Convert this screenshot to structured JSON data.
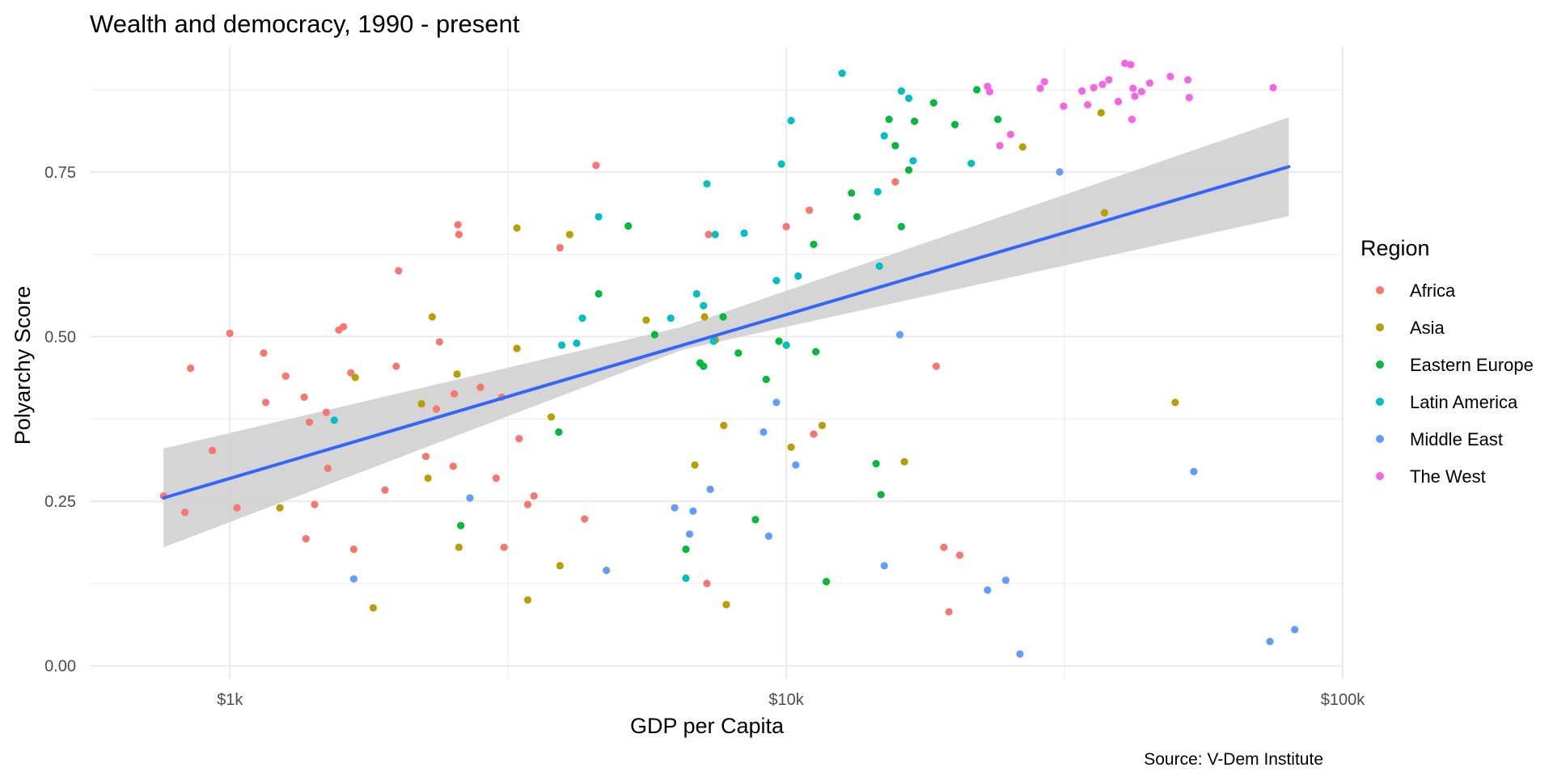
{
  "chart_data": {
    "type": "scatter",
    "title": "Wealth and democracy, 1990 - present",
    "xlabel": "GDP per Capita",
    "ylabel": "Polyarchy Score",
    "caption": "Source: V-Dem Institute",
    "x_scale": "log10",
    "xlim": [
      560,
      100000
    ],
    "ylim": [
      -0.02,
      0.94
    ],
    "x_ticks": [
      {
        "value": 1000,
        "label": "$1k"
      },
      {
        "value": 10000,
        "label": "$10k"
      },
      {
        "value": 100000,
        "label": "$100k"
      }
    ],
    "y_ticks": [
      {
        "value": 0,
        "label": "0.00"
      },
      {
        "value": 0.25,
        "label": "0.25"
      },
      {
        "value": 0.5,
        "label": "0.50"
      },
      {
        "value": 0.75,
        "label": "0.75"
      }
    ],
    "grid": true,
    "legend": {
      "title": "Region",
      "position": "right"
    },
    "trend": {
      "type": "linear fit on log10(x)",
      "line": [
        [
          760,
          0.255
        ],
        [
          80000,
          0.758
        ]
      ],
      "band_lower": [
        [
          760,
          0.18
        ],
        [
          6500,
          0.48
        ],
        [
          80000,
          0.683
        ]
      ],
      "band_upper": [
        [
          760,
          0.33
        ],
        [
          6500,
          0.515
        ],
        [
          80000,
          0.833
        ]
      ],
      "line_color": "#3366FF",
      "band_color": "#d3d3d3"
    },
    "series": [
      {
        "name": "Africa",
        "color": "#F8766D",
        "points": [
          [
            760,
            0.258
          ],
          [
            830,
            0.233
          ],
          [
            850,
            0.452
          ],
          [
            930,
            0.327
          ],
          [
            1000,
            0.505
          ],
          [
            1030,
            0.24
          ],
          [
            1150,
            0.475
          ],
          [
            1160,
            0.4
          ],
          [
            1260,
            0.44
          ],
          [
            1360,
            0.408
          ],
          [
            1370,
            0.193
          ],
          [
            1390,
            0.37
          ],
          [
            1420,
            0.245
          ],
          [
            1490,
            0.385
          ],
          [
            1500,
            0.3
          ],
          [
            1570,
            0.51
          ],
          [
            1600,
            0.515
          ],
          [
            1650,
            0.445
          ],
          [
            1670,
            0.177
          ],
          [
            1900,
            0.267
          ],
          [
            1990,
            0.455
          ],
          [
            2010,
            0.6
          ],
          [
            2250,
            0.318
          ],
          [
            2350,
            0.39
          ],
          [
            2380,
            0.492
          ],
          [
            2520,
            0.303
          ],
          [
            2530,
            0.413
          ],
          [
            2570,
            0.67
          ],
          [
            2580,
            0.655
          ],
          [
            2820,
            0.423
          ],
          [
            3010,
            0.285
          ],
          [
            3080,
            0.408
          ],
          [
            3110,
            0.18
          ],
          [
            3310,
            0.345
          ],
          [
            3430,
            0.245
          ],
          [
            3520,
            0.258
          ],
          [
            3920,
            0.635
          ],
          [
            4340,
            0.223
          ],
          [
            4550,
            0.76
          ],
          [
            7200,
            0.125
          ],
          [
            7250,
            0.655
          ],
          [
            10000,
            0.667
          ],
          [
            11000,
            0.692
          ],
          [
            11200,
            0.352
          ],
          [
            15700,
            0.735
          ],
          [
            18600,
            0.455
          ],
          [
            19200,
            0.18
          ],
          [
            19600,
            0.082
          ],
          [
            20500,
            0.168
          ]
        ]
      },
      {
        "name": "Asia",
        "color": "#B79F00",
        "points": [
          [
            1230,
            0.24
          ],
          [
            1680,
            0.438
          ],
          [
            1810,
            0.088
          ],
          [
            2210,
            0.398
          ],
          [
            2270,
            0.285
          ],
          [
            2310,
            0.53
          ],
          [
            2560,
            0.443
          ],
          [
            2580,
            0.18
          ],
          [
            3280,
            0.482
          ],
          [
            3280,
            0.665
          ],
          [
            3430,
            0.1
          ],
          [
            3780,
            0.378
          ],
          [
            3920,
            0.152
          ],
          [
            4080,
            0.655
          ],
          [
            5600,
            0.525
          ],
          [
            6850,
            0.305
          ],
          [
            7130,
            0.53
          ],
          [
            7460,
            0.495
          ],
          [
            7720,
            0.365
          ],
          [
            7800,
            0.093
          ],
          [
            10200,
            0.332
          ],
          [
            11600,
            0.365
          ],
          [
            16300,
            0.31
          ],
          [
            26600,
            0.788
          ],
          [
            36800,
            0.84
          ],
          [
            37300,
            0.688
          ],
          [
            50000,
            0.4
          ]
        ]
      },
      {
        "name": "Eastern Europe",
        "color": "#00BA38",
        "points": [
          [
            2600,
            0.213
          ],
          [
            3900,
            0.355
          ],
          [
            4600,
            0.565
          ],
          [
            5200,
            0.668
          ],
          [
            5800,
            0.503
          ],
          [
            6600,
            0.177
          ],
          [
            7000,
            0.46
          ],
          [
            7100,
            0.455
          ],
          [
            7700,
            0.53
          ],
          [
            8200,
            0.475
          ],
          [
            8800,
            0.222
          ],
          [
            9200,
            0.435
          ],
          [
            9700,
            0.493
          ],
          [
            11200,
            0.64
          ],
          [
            11300,
            0.477
          ],
          [
            11800,
            0.128
          ],
          [
            13100,
            0.718
          ],
          [
            13400,
            0.682
          ],
          [
            14500,
            0.307
          ],
          [
            14800,
            0.26
          ],
          [
            15300,
            0.83
          ],
          [
            15700,
            0.79
          ],
          [
            16100,
            0.667
          ],
          [
            16600,
            0.753
          ],
          [
            17000,
            0.827
          ],
          [
            18400,
            0.855
          ],
          [
            20100,
            0.822
          ],
          [
            22000,
            0.875
          ],
          [
            24000,
            0.83
          ]
        ]
      },
      {
        "name": "Latin America",
        "color": "#00BFC4",
        "points": [
          [
            1540,
            0.373
          ],
          [
            3950,
            0.487
          ],
          [
            4200,
            0.49
          ],
          [
            4300,
            0.528
          ],
          [
            4600,
            0.682
          ],
          [
            6200,
            0.528
          ],
          [
            6600,
            0.133
          ],
          [
            6900,
            0.565
          ],
          [
            7100,
            0.547
          ],
          [
            7200,
            0.732
          ],
          [
            7400,
            0.493
          ],
          [
            7450,
            0.655
          ],
          [
            8400,
            0.657
          ],
          [
            9600,
            0.585
          ],
          [
            9800,
            0.762
          ],
          [
            10000,
            0.487
          ],
          [
            10200,
            0.828
          ],
          [
            10500,
            0.592
          ],
          [
            12600,
            0.9
          ],
          [
            14600,
            0.72
          ],
          [
            14700,
            0.607
          ],
          [
            15000,
            0.805
          ],
          [
            16100,
            0.873
          ],
          [
            16600,
            0.862
          ],
          [
            16900,
            0.767
          ],
          [
            21500,
            0.763
          ]
        ]
      },
      {
        "name": "Middle East",
        "color": "#619CFF",
        "points": [
          [
            1670,
            0.132
          ],
          [
            2700,
            0.255
          ],
          [
            4750,
            0.145
          ],
          [
            6300,
            0.24
          ],
          [
            6700,
            0.2
          ],
          [
            6800,
            0.235
          ],
          [
            7300,
            0.268
          ],
          [
            9100,
            0.355
          ],
          [
            9300,
            0.197
          ],
          [
            9600,
            0.4
          ],
          [
            10400,
            0.305
          ],
          [
            15000,
            0.152
          ],
          [
            16000,
            0.503
          ],
          [
            23000,
            0.115
          ],
          [
            24800,
            0.13
          ],
          [
            26300,
            0.018
          ],
          [
            31000,
            0.75
          ],
          [
            54000,
            0.295
          ],
          [
            74000,
            0.037
          ],
          [
            82000,
            0.055
          ]
        ]
      },
      {
        "name": "The West",
        "color": "#F564E3",
        "points": [
          [
            23000,
            0.88
          ],
          [
            23200,
            0.872
          ],
          [
            24200,
            0.79
          ],
          [
            25300,
            0.807
          ],
          [
            28600,
            0.877
          ],
          [
            29100,
            0.887
          ],
          [
            31500,
            0.85
          ],
          [
            34000,
            0.873
          ],
          [
            34800,
            0.852
          ],
          [
            35700,
            0.878
          ],
          [
            37000,
            0.883
          ],
          [
            38000,
            0.89
          ],
          [
            39500,
            0.857
          ],
          [
            40600,
            0.915
          ],
          [
            41600,
            0.913
          ],
          [
            41800,
            0.83
          ],
          [
            42000,
            0.877
          ],
          [
            42300,
            0.865
          ],
          [
            43500,
            0.872
          ],
          [
            45000,
            0.885
          ],
          [
            49000,
            0.895
          ],
          [
            52700,
            0.89
          ],
          [
            53000,
            0.863
          ],
          [
            75000,
            0.878
          ]
        ]
      }
    ]
  }
}
